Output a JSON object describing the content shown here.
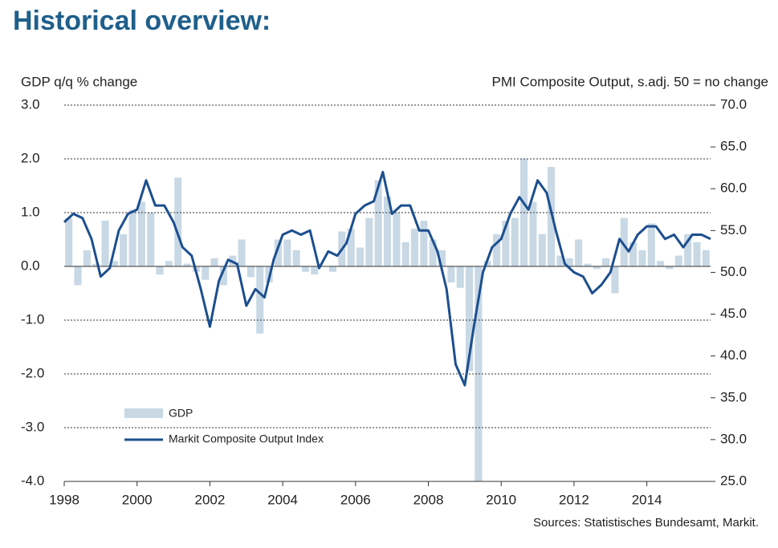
{
  "chart_data": {
    "type": "bar-line",
    "title": "Historical overview:",
    "y_label": "GDP q/q % change",
    "y2_label": "PMI Composite  Output,  s.adj. 50 = no change",
    "source": "Sources: Statistisches Bundesamt, Markit.",
    "xlim": [
      1998,
      2015.75
    ],
    "xticks": [
      1998,
      2000,
      2002,
      2004,
      2006,
      2008,
      2010,
      2012,
      2014
    ],
    "ylim": [
      -4,
      3
    ],
    "yticks": [
      {
        "value": 3,
        "label": "3.0"
      },
      {
        "value": 2,
        "label": "2.0"
      },
      {
        "value": 1,
        "label": "1.0"
      },
      {
        "value": 0,
        "label": "0.0"
      },
      {
        "value": -1,
        "label": "-1.0"
      },
      {
        "value": -2,
        "label": "-2.0"
      },
      {
        "value": -3,
        "label": "-3.0"
      },
      {
        "value": -4,
        "label": "-4.0"
      }
    ],
    "y2lim": [
      25,
      70
    ],
    "y2ticks": [
      {
        "value": 70,
        "label": "70.0"
      },
      {
        "value": 65,
        "label": "65.0"
      },
      {
        "value": 60,
        "label": "60.0"
      },
      {
        "value": 55,
        "label": "55.0"
      },
      {
        "value": 50,
        "label": "50.0"
      },
      {
        "value": 45,
        "label": "45.0"
      },
      {
        "value": 40,
        "label": "40.0"
      },
      {
        "value": 35,
        "label": "35.0"
      },
      {
        "value": 30,
        "label": "30.0"
      },
      {
        "value": 25,
        "label": "25.0"
      }
    ],
    "grid": true,
    "series": [
      {
        "name": "GDP",
        "type": "bar",
        "color": "#c8d8e5",
        "x": [
          1998.125,
          1998.375,
          1998.625,
          1998.875,
          1999.125,
          1999.375,
          1999.625,
          1999.875,
          2000.125,
          2000.375,
          2000.625,
          2000.875,
          2001.125,
          2001.375,
          2001.625,
          2001.875,
          2002.125,
          2002.375,
          2002.625,
          2002.875,
          2003.125,
          2003.375,
          2003.625,
          2003.875,
          2004.125,
          2004.375,
          2004.625,
          2004.875,
          2005.125,
          2005.375,
          2005.625,
          2005.875,
          2006.125,
          2006.375,
          2006.625,
          2006.875,
          2007.125,
          2007.375,
          2007.625,
          2007.875,
          2008.125,
          2008.375,
          2008.625,
          2008.875,
          2009.125,
          2009.375,
          2009.625,
          2009.875,
          2010.125,
          2010.375,
          2010.625,
          2010.875,
          2011.125,
          2011.375,
          2011.625,
          2011.875,
          2012.125,
          2012.375,
          2012.625,
          2012.875,
          2013.125,
          2013.375,
          2013.625,
          2013.875,
          2014.125,
          2014.375,
          2014.625,
          2014.875,
          2015.125,
          2015.375,
          2015.625
        ],
        "values": [
          0.9,
          -0.35,
          0.3,
          0.05,
          0.85,
          0.1,
          0.6,
          1.05,
          1.2,
          1.0,
          -0.15,
          0.1,
          1.65,
          0.05,
          -0.1,
          -0.25,
          0.15,
          -0.35,
          0.2,
          0.5,
          -0.2,
          -1.25,
          -0.3,
          0.5,
          0.5,
          0.3,
          -0.1,
          -0.15,
          0.0,
          -0.1,
          0.65,
          0.7,
          0.35,
          0.9,
          1.6,
          1.3,
          1.0,
          0.45,
          0.7,
          0.85,
          0.5,
          0.3,
          -0.3,
          -0.4,
          -1.95,
          -4.0,
          0.1,
          0.6,
          0.85,
          0.9,
          2.0,
          1.2,
          0.6,
          1.85,
          0.2,
          0.15,
          0.5,
          0.05,
          -0.05,
          0.15,
          -0.5,
          0.9,
          0.45,
          0.3,
          0.8,
          0.1,
          -0.05,
          0.2,
          0.6,
          0.45,
          0.3
        ]
      },
      {
        "name": "Markit Composite Output Index",
        "type": "line",
        "axis": "y2",
        "color": "#1c4f8e",
        "x": [
          1998,
          1998.25,
          1998.5,
          1998.75,
          1999,
          1999.25,
          1999.5,
          1999.75,
          2000,
          2000.25,
          2000.5,
          2000.75,
          2001,
          2001.25,
          2001.5,
          2001.75,
          2002,
          2002.25,
          2002.5,
          2002.75,
          2003,
          2003.25,
          2003.5,
          2003.75,
          2004,
          2004.25,
          2004.5,
          2004.75,
          2005,
          2005.25,
          2005.5,
          2005.75,
          2006,
          2006.25,
          2006.5,
          2006.75,
          2007,
          2007.25,
          2007.5,
          2007.75,
          2008,
          2008.25,
          2008.5,
          2008.75,
          2009,
          2009.25,
          2009.5,
          2009.75,
          2010,
          2010.25,
          2010.5,
          2010.75,
          2011,
          2011.25,
          2011.5,
          2011.75,
          2012,
          2012.25,
          2012.5,
          2012.75,
          2013,
          2013.25,
          2013.5,
          2013.75,
          2014,
          2014.25,
          2014.5,
          2014.75,
          2015,
          2015.25,
          2015.5,
          2015.75
        ],
        "values": [
          56,
          57,
          56.5,
          54,
          49.5,
          50.5,
          55,
          57,
          57.5,
          61,
          58,
          58,
          56,
          53,
          52,
          48,
          43.5,
          49,
          51.5,
          51,
          46,
          48,
          47,
          51.5,
          54.5,
          55,
          54.5,
          55,
          50.5,
          52.5,
          52,
          53.5,
          57,
          58,
          58.5,
          62,
          57,
          58,
          58,
          55,
          55,
          52.5,
          48,
          39,
          36.5,
          43.5,
          50,
          53,
          54,
          57,
          59,
          57.5,
          61,
          59.5,
          55,
          51,
          50,
          49.5,
          47.5,
          48.5,
          50,
          54,
          52.5,
          54.5,
          55.5,
          55.5,
          54,
          54.5,
          53,
          54.5,
          54.5,
          54
        ]
      }
    ]
  }
}
